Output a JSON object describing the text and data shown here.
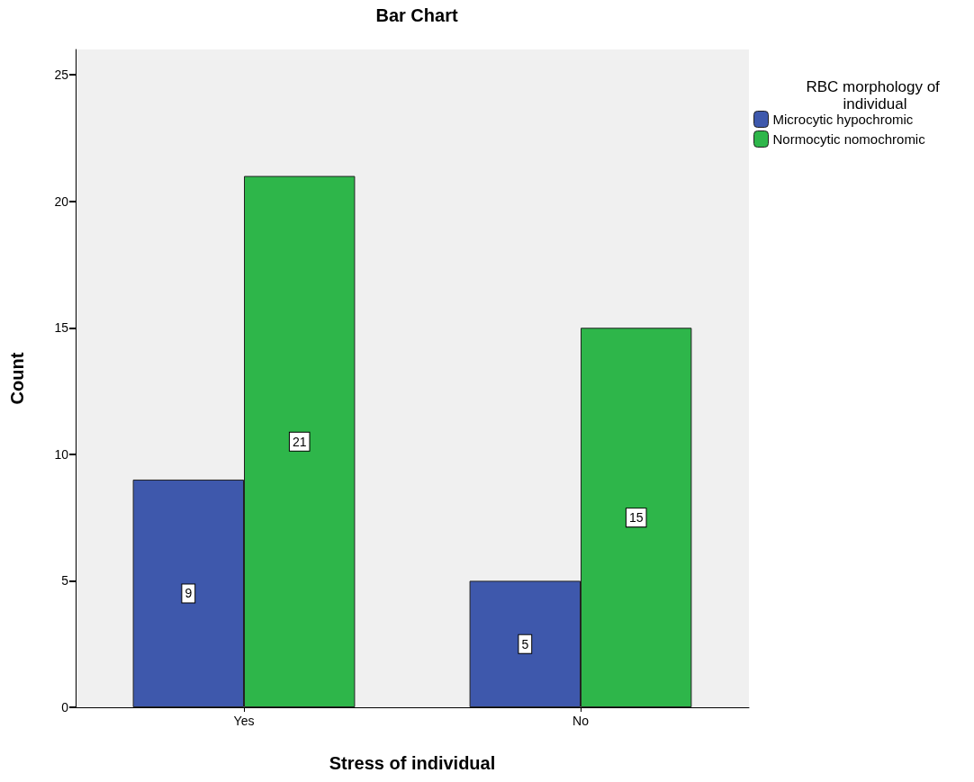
{
  "chart_data": {
    "type": "bar",
    "title": "Bar Chart",
    "xlabel": "Stress of individual",
    "ylabel": "Count",
    "legend_title": "RBC morphology of individual",
    "categories": [
      "Yes",
      "No"
    ],
    "series": [
      {
        "name": "Microcytic hypochromic",
        "color": "#3e58ac",
        "values": [
          9,
          5
        ]
      },
      {
        "name": "Normocytic nomochromic",
        "color": "#2eb64a",
        "values": [
          21,
          15
        ]
      }
    ],
    "ylim": [
      0,
      26
    ],
    "yticks": [
      0,
      5,
      10,
      15,
      20,
      25
    ],
    "grid": false,
    "legend": "top right",
    "data_labels": true
  }
}
